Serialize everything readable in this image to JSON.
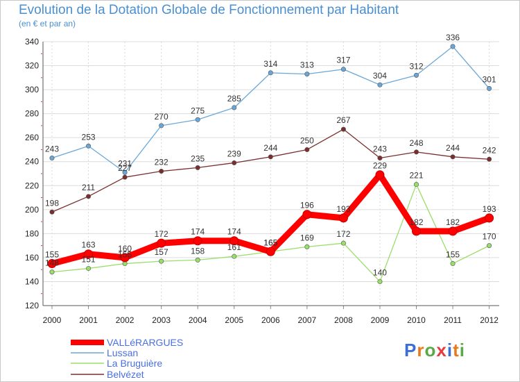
{
  "chart_data": {
    "type": "line",
    "title": "Evolution de la Dotation Globale de Fonctionnement par Habitant",
    "subtitle": "(en € et par an)",
    "xlabel": "",
    "ylabel": "",
    "x": [
      "2000",
      "2001",
      "2002",
      "2003",
      "2004",
      "2005",
      "2006",
      "2007",
      "2008",
      "2009",
      "2010",
      "2011",
      "2012"
    ],
    "ylim": [
      120,
      340
    ],
    "yticks": [
      "120",
      "140",
      "160",
      "180",
      "200",
      "220",
      "240",
      "260",
      "280",
      "300",
      "320",
      "340"
    ],
    "grid": true,
    "legend_position": "bottom-left",
    "series": [
      {
        "name": "VALLéRARGUES",
        "color": "#ff0000",
        "values": [
          155,
          163,
          160,
          172,
          174,
          174,
          165,
          196,
          193,
          229,
          182,
          182,
          193
        ]
      },
      {
        "name": "Lussan",
        "color": "#6aa7d8",
        "values": [
          243,
          253,
          231,
          270,
          275,
          285,
          314,
          313,
          317,
          304,
          312,
          336,
          301
        ]
      },
      {
        "name": "La Bruguière",
        "color": "#9ade6a",
        "values": [
          148,
          151,
          155,
          157,
          158,
          161,
          165,
          169,
          172,
          140,
          221,
          155,
          170
        ]
      },
      {
        "name": "Belvézet",
        "color": "#7a2e2e",
        "values": [
          198,
          211,
          227,
          232,
          235,
          239,
          244,
          250,
          267,
          243,
          248,
          244,
          242
        ]
      }
    ]
  },
  "logo": {
    "text": "Proxiti",
    "letters": [
      "P",
      "r",
      "o",
      "x",
      "i",
      "t",
      "i"
    ],
    "colors": [
      "#3a6fd8",
      "#e87a1a",
      "#5aa848",
      "#e83a3a",
      "#3a6fd8",
      "#e87a1a",
      "#5aa848"
    ]
  }
}
